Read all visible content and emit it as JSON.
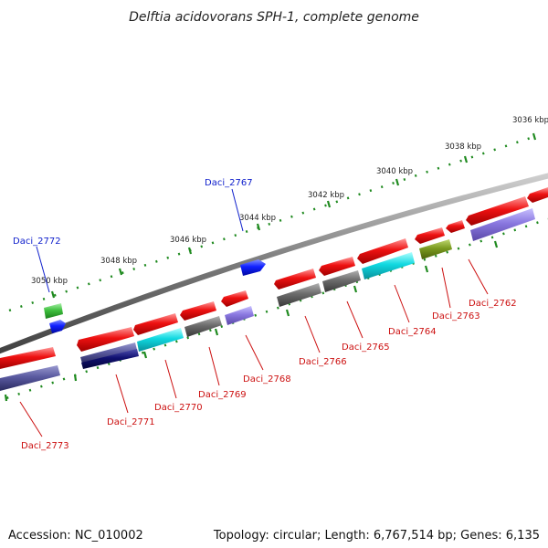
{
  "title": "Delftia acidovorans SPH-1, complete genome",
  "footer": {
    "accession": "Accession: NC_010002",
    "topology": "Topology: circular; Length: 6,767,514 bp; Genes: 6,135"
  },
  "colors": {
    "backbone": "#8c8c8c",
    "ticks": "#1f8a1f",
    "label_top": "#1020cc",
    "label_bottom": "#cc1010",
    "red": "#ee1111",
    "slate": "#5a5aa0",
    "navy": "#101070",
    "cyan": "#10d8e0",
    "gray": "#6c6c6c",
    "lavender": "#8a78e0",
    "olive": "#7a9a20",
    "green": "#40c040",
    "blue": "#1020ff"
  },
  "ticks": [
    "3050 kbp",
    "3048 kbp",
    "3046 kbp",
    "3044 kbp",
    "3042 kbp",
    "3040 kbp",
    "3038 kbp",
    "3036 kbp"
  ],
  "top_labels": [
    "Daci_2772",
    "Daci_2767"
  ],
  "bottom_labels": [
    "Daci_2773",
    "Daci_2771",
    "Daci_2770",
    "Daci_2769",
    "Daci_2768",
    "Daci_2766",
    "Daci_2765",
    "Daci_2764",
    "Daci_2763",
    "Daci_2762"
  ]
}
